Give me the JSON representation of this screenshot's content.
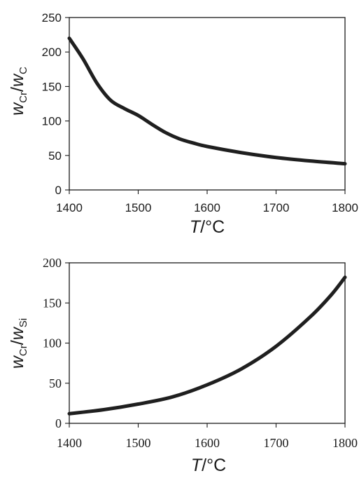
{
  "chart_data": [
    {
      "type": "line",
      "xlabel": {
        "var": "T",
        "unit": "/°C"
      },
      "ylabel": {
        "var1": "w",
        "sub1": "Cr",
        "sep": "/",
        "var2": "w",
        "sub2": "C"
      },
      "xlim": [
        1400,
        1800
      ],
      "ylim": [
        0,
        250
      ],
      "xticks": [
        "1400",
        "1500",
        "1600",
        "1700",
        "1800"
      ],
      "yticks": [
        "0",
        "50",
        "100",
        "150",
        "200",
        "250"
      ],
      "grid": false,
      "series": [
        {
          "x": [
            1400,
            1420,
            1440,
            1460,
            1480,
            1500,
            1520,
            1540,
            1560,
            1580,
            1600,
            1650,
            1700,
            1750,
            1800
          ],
          "y": [
            220,
            190,
            155,
            130,
            118,
            108,
            95,
            83,
            74,
            68,
            63,
            54,
            47,
            42,
            38
          ]
        }
      ]
    },
    {
      "type": "line",
      "xlabel": {
        "var": "T",
        "unit": "/°C"
      },
      "ylabel": {
        "var1": "w",
        "sub1": "Cr",
        "sep": "/",
        "var2": "w",
        "sub2": "Si"
      },
      "xlim": [
        1400,
        1800
      ],
      "ylim": [
        0,
        200
      ],
      "xticks": [
        "1400",
        "1500",
        "1600",
        "1700",
        "1800"
      ],
      "yticks": [
        "0",
        "50",
        "100",
        "150",
        "200"
      ],
      "grid": false,
      "series": [
        {
          "x": [
            1400,
            1450,
            1500,
            1550,
            1600,
            1650,
            1700,
            1750,
            1780,
            1800
          ],
          "y": [
            12,
            17,
            24,
            33,
            48,
            68,
            96,
            133,
            160,
            182
          ]
        }
      ]
    }
  ]
}
